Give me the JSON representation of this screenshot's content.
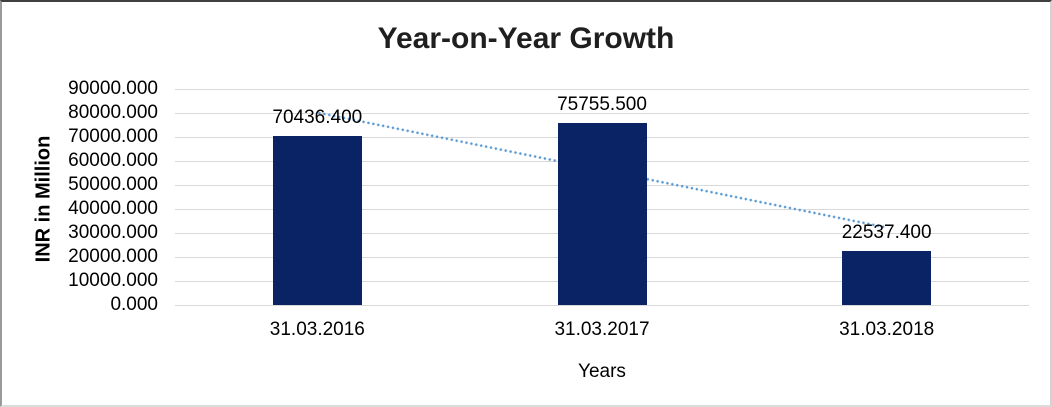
{
  "chart_data": {
    "type": "bar",
    "title": "Year-on-Year Growth",
    "xlabel": "Years",
    "ylabel": "INR in Million",
    "categories": [
      "31.03.2016",
      "31.03.2017",
      "31.03.2018"
    ],
    "values": [
      70436.4,
      75755.5,
      22537.4
    ],
    "value_labels": [
      "70436.400",
      "75755.500",
      "22537.400"
    ],
    "ylim": [
      0,
      90000
    ],
    "ytick_step": 10000,
    "ytick_labels": [
      "0.000",
      "10000.000",
      "20000.000",
      "30000.000",
      "40000.000",
      "50000.000",
      "60000.000",
      "70000.000",
      "80000.000",
      "90000.000"
    ],
    "grid": true,
    "legend_position": "none",
    "trendline": {
      "type": "linear",
      "style": "dotted",
      "values_at_ends": [
        80192.6,
        32293.6
      ]
    },
    "colors": {
      "bar": "#0a2364",
      "trendline": "#5b9bd5",
      "gridline": "#d9d9d9",
      "title_text": "#1f1f1f",
      "axis_text": "#000000"
    }
  }
}
